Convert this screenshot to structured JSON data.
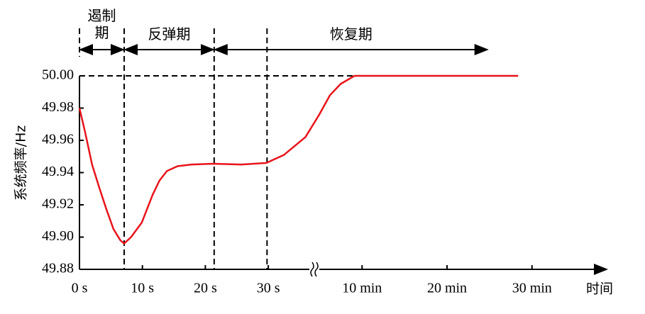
{
  "chart_data": {
    "type": "line",
    "y_label": "系统频率/Hz",
    "x_label": "时间",
    "ylim": [
      49.88,
      50.0
    ],
    "yticks": [
      49.88,
      {
        "value": 49.9,
        "label": "49.90"
      },
      49.92,
      49.94,
      49.96,
      49.98,
      {
        "value": 50,
        "label": "50.00"
      }
    ],
    "xlim": [
      0,
      84
    ],
    "xticks": [
      {
        "value": 0,
        "label": "0 s"
      },
      {
        "value": 10,
        "label": "10 s"
      },
      {
        "value": 20,
        "label": "20 s"
      },
      {
        "value": 30,
        "label": "30 s"
      },
      {
        "value": 44.9,
        "label": "10 min"
      },
      {
        "value": 58.4,
        "label": "20 min"
      },
      {
        "value": 71.9,
        "label": "30 min"
      }
    ],
    "phases": [
      {
        "label": "遏制期",
        "start": 0,
        "end": 7.1
      },
      {
        "label": "反弹期",
        "start": 7.1,
        "end": 21.4
      },
      {
        "label": "恢复期",
        "start": 21.4,
        "end": 64.9
      }
    ],
    "vlines": [
      7.1,
      21.4,
      29.8
    ],
    "hline": 50,
    "series": [
      {
        "color": "#e8141b",
        "x": [
          0,
          0.9,
          2.0,
          3.2,
          4.3,
          5.4,
          6.5,
          7.1,
          8.2,
          9.9,
          11.6,
          12.7,
          13.9,
          15.6,
          17.8,
          21.2,
          25.7,
          29.7,
          32.5,
          35.9,
          38.1,
          39.8,
          41.5,
          43.7,
          69.7
        ],
        "values": [
          49.98,
          49.965,
          49.945,
          49.93,
          49.917,
          49.905,
          49.898,
          49.896,
          49.9,
          49.909,
          49.926,
          49.935,
          49.941,
          49.944,
          49.945,
          49.9455,
          49.945,
          49.946,
          49.951,
          49.962,
          49.976,
          49.988,
          49.995,
          50.0,
          50.0
        ]
      }
    ]
  }
}
